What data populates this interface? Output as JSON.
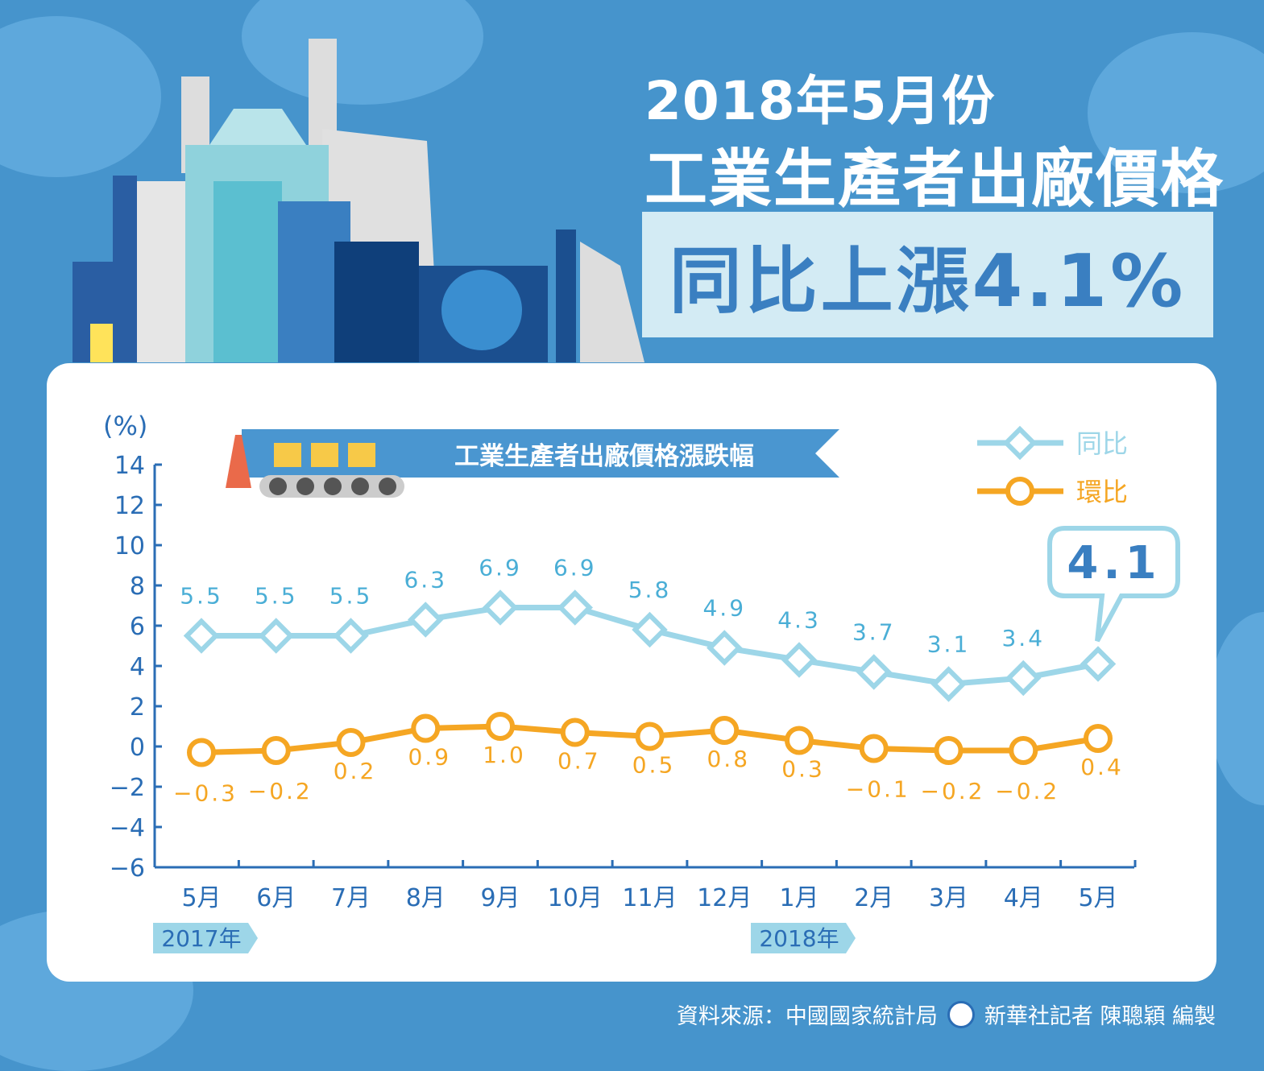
{
  "header": {
    "title_line1": "2018年5月份",
    "title_line2": "工業生產者出廠價格",
    "headline": "同比上漲4.1%"
  },
  "footer": {
    "source": "資料來源：中國國家統計局",
    "credit": "新華社記者 陳聰穎 編製"
  },
  "colors": {
    "background": "#4694cc",
    "yoy": "#9dd6e8",
    "yoy_label": "#4aaed6",
    "mom": "#f5a623",
    "axis": "#2a6db5"
  },
  "chart_data": {
    "type": "line",
    "title": "工業生產者出廠價格漲跌幅",
    "ylabel": "(%)",
    "ylim": [
      -6,
      14
    ],
    "yticks": [
      14,
      12,
      10,
      8,
      6,
      4,
      2,
      0,
      -2,
      -4,
      -6
    ],
    "categories": [
      "5月",
      "6月",
      "7月",
      "8月",
      "9月",
      "10月",
      "11月",
      "12月",
      "1月",
      "2月",
      "3月",
      "4月",
      "5月"
    ],
    "year_labels": [
      {
        "label": "2017年",
        "index": 0
      },
      {
        "label": "2018年",
        "index": 8
      }
    ],
    "legend_position": "top-right",
    "series": [
      {
        "name": "同比",
        "values": [
          5.5,
          5.5,
          5.5,
          6.3,
          6.9,
          6.9,
          5.8,
          4.9,
          4.3,
          3.7,
          3.1,
          3.4,
          4.1
        ],
        "labels": [
          "5.5",
          "5.5",
          "5.5",
          "6.3",
          "6.9",
          "6.9",
          "5.8",
          "4.9",
          "4.3",
          "3.7",
          "3.1",
          "3.4",
          ""
        ]
      },
      {
        "name": "環比",
        "values": [
          -0.3,
          -0.2,
          0.2,
          0.9,
          1.0,
          0.7,
          0.5,
          0.8,
          0.3,
          -0.1,
          -0.2,
          -0.2,
          0.4
        ],
        "labels": [
          "−0.3",
          "−0.2",
          "0.2",
          "0.9",
          "1.0",
          "0.7",
          "0.5",
          "0.8",
          "0.3",
          "−0.1",
          "−0.2",
          "−0.2",
          "0.4"
        ]
      }
    ],
    "callout": "4.1"
  }
}
